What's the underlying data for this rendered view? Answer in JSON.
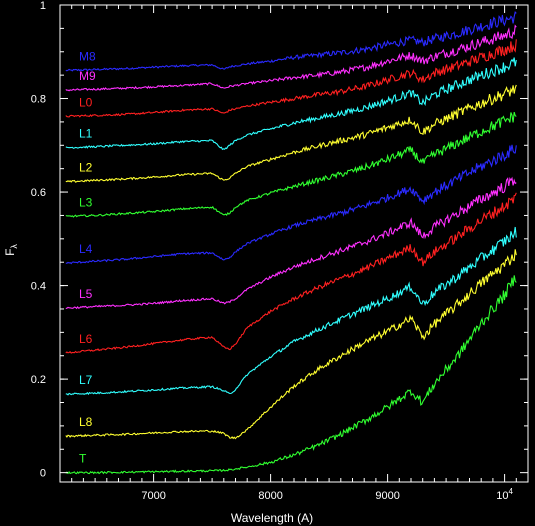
{
  "chart_data": {
    "type": "line",
    "xlabel": "Wavelength (A)",
    "ylabel": "F",
    "ylabel_subscript": "λ",
    "xlim": [
      6200,
      10200
    ],
    "ylim": [
      -0.02,
      1.0
    ],
    "x_ticks": [
      {
        "value": 7000,
        "label": "7000"
      },
      {
        "value": 8000,
        "label": "8000"
      },
      {
        "value": 9000,
        "label": "9000"
      },
      {
        "value": 10000,
        "label": "10",
        "sup": "4"
      }
    ],
    "y_ticks": [
      {
        "value": 0,
        "label": "0"
      },
      {
        "value": 0.2,
        "label": "0.2"
      },
      {
        "value": 0.4,
        "label": "0.4"
      },
      {
        "value": 0.6,
        "label": "0.6"
      },
      {
        "value": 0.8,
        "label": "0.8"
      },
      {
        "value": 1,
        "label": "1"
      }
    ],
    "x": [
      6250,
      6500,
      6750,
      7000,
      7250,
      7500,
      7600,
      7650,
      7700,
      7800,
      8000,
      8200,
      8400,
      8600,
      8800,
      9000,
      9200,
      9300,
      9400,
      9600,
      9800,
      10000,
      10100
    ],
    "series": [
      {
        "name": "M8",
        "color": "#2a2aff",
        "values": [
          0.86,
          0.862,
          0.864,
          0.867,
          0.87,
          0.872,
          0.862,
          0.868,
          0.87,
          0.874,
          0.88,
          0.888,
          0.893,
          0.898,
          0.905,
          0.915,
          0.925,
          0.92,
          0.928,
          0.94,
          0.955,
          0.968,
          0.975
        ]
      },
      {
        "name": "M9",
        "color": "#ff30ff",
        "values": [
          0.818,
          0.82,
          0.822,
          0.825,
          0.828,
          0.832,
          0.822,
          0.826,
          0.828,
          0.832,
          0.838,
          0.845,
          0.85,
          0.857,
          0.866,
          0.88,
          0.893,
          0.88,
          0.89,
          0.905,
          0.92,
          0.935,
          0.945
        ]
      },
      {
        "name": "L0",
        "color": "#ff2020",
        "values": [
          0.762,
          0.764,
          0.766,
          0.77,
          0.775,
          0.778,
          0.768,
          0.775,
          0.778,
          0.784,
          0.792,
          0.8,
          0.808,
          0.815,
          0.825,
          0.84,
          0.855,
          0.84,
          0.855,
          0.87,
          0.888,
          0.905,
          0.915
        ]
      },
      {
        "name": "L1",
        "color": "#30ffff",
        "values": [
          0.695,
          0.697,
          0.7,
          0.703,
          0.708,
          0.71,
          0.69,
          0.7,
          0.71,
          0.722,
          0.735,
          0.748,
          0.758,
          0.768,
          0.78,
          0.795,
          0.812,
          0.79,
          0.808,
          0.83,
          0.85,
          0.868,
          0.878
        ]
      },
      {
        "name": "L2",
        "color": "#ffff30",
        "values": [
          0.622,
          0.625,
          0.628,
          0.632,
          0.637,
          0.64,
          0.625,
          0.63,
          0.64,
          0.655,
          0.67,
          0.685,
          0.698,
          0.71,
          0.722,
          0.738,
          0.755,
          0.728,
          0.745,
          0.768,
          0.79,
          0.81,
          0.822
        ]
      },
      {
        "name": "L3",
        "color": "#30ff30",
        "values": [
          0.548,
          0.55,
          0.554,
          0.558,
          0.564,
          0.568,
          0.55,
          0.555,
          0.568,
          0.582,
          0.598,
          0.612,
          0.625,
          0.638,
          0.652,
          0.67,
          0.69,
          0.662,
          0.68,
          0.705,
          0.73,
          0.752,
          0.765
        ]
      },
      {
        "name": "L4",
        "color": "#2a2aff",
        "values": [
          0.448,
          0.452,
          0.456,
          0.462,
          0.468,
          0.47,
          0.455,
          0.46,
          0.472,
          0.49,
          0.51,
          0.528,
          0.542,
          0.555,
          0.57,
          0.588,
          0.608,
          0.582,
          0.6,
          0.628,
          0.655,
          0.68,
          0.695
        ]
      },
      {
        "name": "L5",
        "color": "#ff30ff",
        "values": [
          0.352,
          0.355,
          0.358,
          0.362,
          0.368,
          0.372,
          0.362,
          0.365,
          0.372,
          0.392,
          0.418,
          0.44,
          0.458,
          0.475,
          0.492,
          0.512,
          0.535,
          0.505,
          0.525,
          0.555,
          0.585,
          0.612,
          0.63
        ]
      },
      {
        "name": "L6",
        "color": "#ff2020",
        "values": [
          0.256,
          0.262,
          0.268,
          0.276,
          0.284,
          0.29,
          0.268,
          0.264,
          0.275,
          0.31,
          0.345,
          0.372,
          0.395,
          0.415,
          0.435,
          0.458,
          0.482,
          0.45,
          0.472,
          0.505,
          0.54,
          0.57,
          0.59
        ]
      },
      {
        "name": "L7",
        "color": "#30ffff",
        "values": [
          0.168,
          0.17,
          0.173,
          0.177,
          0.181,
          0.184,
          0.175,
          0.168,
          0.178,
          0.21,
          0.248,
          0.28,
          0.305,
          0.328,
          0.35,
          0.372,
          0.398,
          0.36,
          0.385,
          0.42,
          0.458,
          0.495,
          0.515
        ]
      },
      {
        "name": "L8",
        "color": "#ffff30",
        "values": [
          0.078,
          0.08,
          0.082,
          0.085,
          0.088,
          0.089,
          0.084,
          0.075,
          0.074,
          0.092,
          0.14,
          0.185,
          0.22,
          0.25,
          0.278,
          0.302,
          0.33,
          0.29,
          0.318,
          0.36,
          0.405,
          0.445,
          0.47
        ]
      },
      {
        "name": "T",
        "color": "#30ff30",
        "values": [
          0.0,
          0.0,
          0.001,
          0.002,
          0.003,
          0.004,
          0.005,
          0.006,
          0.008,
          0.012,
          0.022,
          0.038,
          0.058,
          0.082,
          0.11,
          0.14,
          0.175,
          0.15,
          0.19,
          0.25,
          0.32,
          0.38,
          0.42
        ]
      }
    ]
  }
}
